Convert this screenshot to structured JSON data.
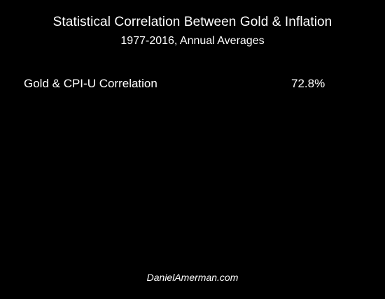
{
  "title": "Statistical Correlation Between Gold & Inflation",
  "subtitle": "1977-2016, Annual Averages",
  "rows": [
    {
      "label": "Gold & CPI-U Correlation",
      "value": "72.8%"
    }
  ],
  "footer": "DanielAmerman.com",
  "colors": {
    "background": "#000000",
    "text": "#ffffff"
  }
}
